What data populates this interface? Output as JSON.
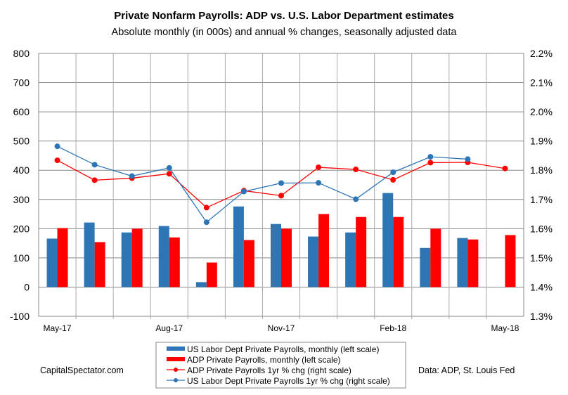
{
  "chart_data": {
    "type": "bar+line",
    "title": "Private Nonfarm Payrolls: ADP vs. U.S. Labor Department estimates",
    "subtitle": "Absolute monthly (in 000s) and annual % changes, seasonally adjusted data",
    "categories": [
      "May-17",
      "Jun-17",
      "Jul-17",
      "Aug-17",
      "Sep-17",
      "Oct-17",
      "Nov-17",
      "Dec-17",
      "Jan-18",
      "Feb-18",
      "Mar-18",
      "Apr-18",
      "May-18"
    ],
    "x_tick_labels": [
      "May-17",
      "",
      "",
      "Aug-17",
      "",
      "",
      "Nov-17",
      "",
      "",
      "Feb-18",
      "",
      "",
      "May-18"
    ],
    "left_axis": {
      "ylim": [
        -100,
        800
      ],
      "ticks": [
        "-100",
        "0",
        "100",
        "200",
        "300",
        "400",
        "500",
        "600",
        "700",
        "800"
      ]
    },
    "right_axis": {
      "ylim": [
        1.3,
        2.2
      ],
      "ticks": [
        "1.3%",
        "1.4%",
        "1.5%",
        "1.6%",
        "1.7%",
        "1.8%",
        "1.9%",
        "2.0%",
        "2.1%",
        "2.2%"
      ]
    },
    "grid": true,
    "legend_placement": "bottom-center",
    "series": [
      {
        "name": "US Labor Dept Private Payrolls, monthly (left scale)",
        "kind": "bar",
        "axis": "left",
        "color": "#2e75b6",
        "values": [
          166,
          221,
          187,
          209,
          17,
          276,
          216,
          173,
          187,
          322,
          134,
          168,
          null
        ]
      },
      {
        "name": "ADP Private Payrolls, monthly (left scale)",
        "kind": "bar",
        "axis": "left",
        "color": "#ff0000",
        "values": [
          202,
          154,
          200,
          170,
          84,
          161,
          200,
          250,
          240,
          240,
          200,
          163,
          178
        ]
      },
      {
        "name": "ADP Private Payrolls 1yr % chg (right scale)",
        "kind": "line",
        "axis": "right",
        "color": "#ff0000",
        "values": [
          1.834,
          1.766,
          1.773,
          1.788,
          1.672,
          1.73,
          1.713,
          1.81,
          1.803,
          1.767,
          1.826,
          1.827,
          1.806
        ]
      },
      {
        "name": "US Labor Dept Private Payrolls 1yr % chg (right scale)",
        "kind": "line",
        "axis": "right",
        "color": "#2e75b6",
        "values": [
          1.882,
          1.819,
          1.78,
          1.808,
          1.622,
          1.727,
          1.756,
          1.757,
          1.701,
          1.793,
          1.846,
          1.838,
          null
        ]
      }
    ]
  },
  "footer": {
    "left": "CapitalSpectator.com",
    "right": "Data: ADP, St. Louis Fed"
  }
}
